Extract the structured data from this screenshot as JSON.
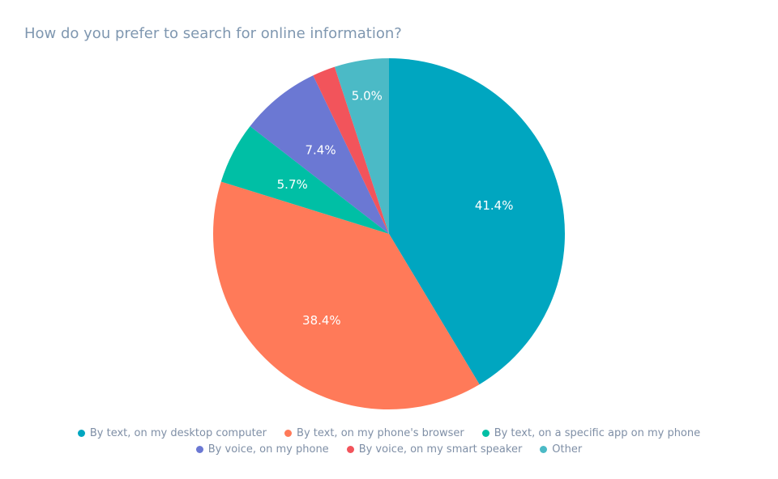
{
  "chart_data": {
    "type": "pie",
    "title": "How do you prefer to search for online information?",
    "slices": [
      {
        "label": "By text, on my desktop computer",
        "value": 41.4,
        "text": "41.4%",
        "color": "#00a6c0"
      },
      {
        "label": "By text, on my phone's browser",
        "value": 38.4,
        "text": "38.4%",
        "color": "#ff7a59"
      },
      {
        "label": "By text, on a specific app on my phone",
        "value": 5.7,
        "text": "5.7%",
        "color": "#00bfa5"
      },
      {
        "label": "By voice, on my phone",
        "value": 7.4,
        "text": "7.4%",
        "color": "#6b78d3"
      },
      {
        "label": "By voice, on my smart speaker",
        "value": 2.1,
        "text": "",
        "color": "#f2545b"
      },
      {
        "label": "Other",
        "value": 5.0,
        "text": "5.0%",
        "color": "#4bbac6"
      }
    ],
    "direction": "clockwise",
    "start": "top",
    "legend_position": "bottom"
  }
}
